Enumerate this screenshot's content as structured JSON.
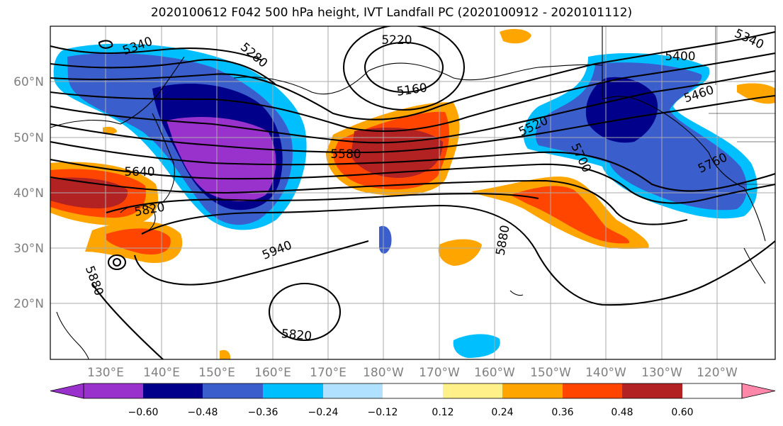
{
  "title": "2020100612 F042 500 hPa height, IVT Landfall PC (2020100912 - 2020101112)",
  "map": {
    "lat_labels": [
      "60°N",
      "50°N",
      "40°N",
      "30°N",
      "20°N"
    ],
    "lon_labels": [
      "130°E",
      "140°E",
      "150°E",
      "160°E",
      "170°E",
      "180°W",
      "170°W",
      "160°W",
      "150°W",
      "140°W",
      "130°W",
      "120°W"
    ],
    "contour_labels": [
      "5340",
      "5280",
      "5220",
      "5160",
      "5400",
      "5340",
      "5460",
      "5520",
      "5580",
      "5640",
      "5700",
      "5760",
      "5820",
      "5940",
      "5880",
      "5880",
      "5820"
    ],
    "colors": {
      "purple": "#9932cc",
      "navy": "#00008b",
      "royalblue": "#3a5fcd",
      "deepskyblue": "#00bfff",
      "lightblue": "#b0e2ff",
      "white": "#ffffff",
      "lightyellow": "#fff08a",
      "orange": "#ffa500",
      "orangered": "#ff4500",
      "firebrick": "#b22222",
      "pink": "#ff88aa"
    }
  },
  "colorbar": {
    "tick_labels": [
      "−0.60",
      "−0.48",
      "−0.36",
      "−0.24",
      "−0.12",
      "0.12",
      "0.24",
      "0.36",
      "0.48",
      "0.60"
    ],
    "colors": [
      "#9932cc",
      "#00008b",
      "#3a5fcd",
      "#00bfff",
      "#b0e2ff",
      "#ffffff",
      "#fff08a",
      "#ffa500",
      "#ff4500",
      "#b22222",
      "#ff88aa"
    ]
  }
}
